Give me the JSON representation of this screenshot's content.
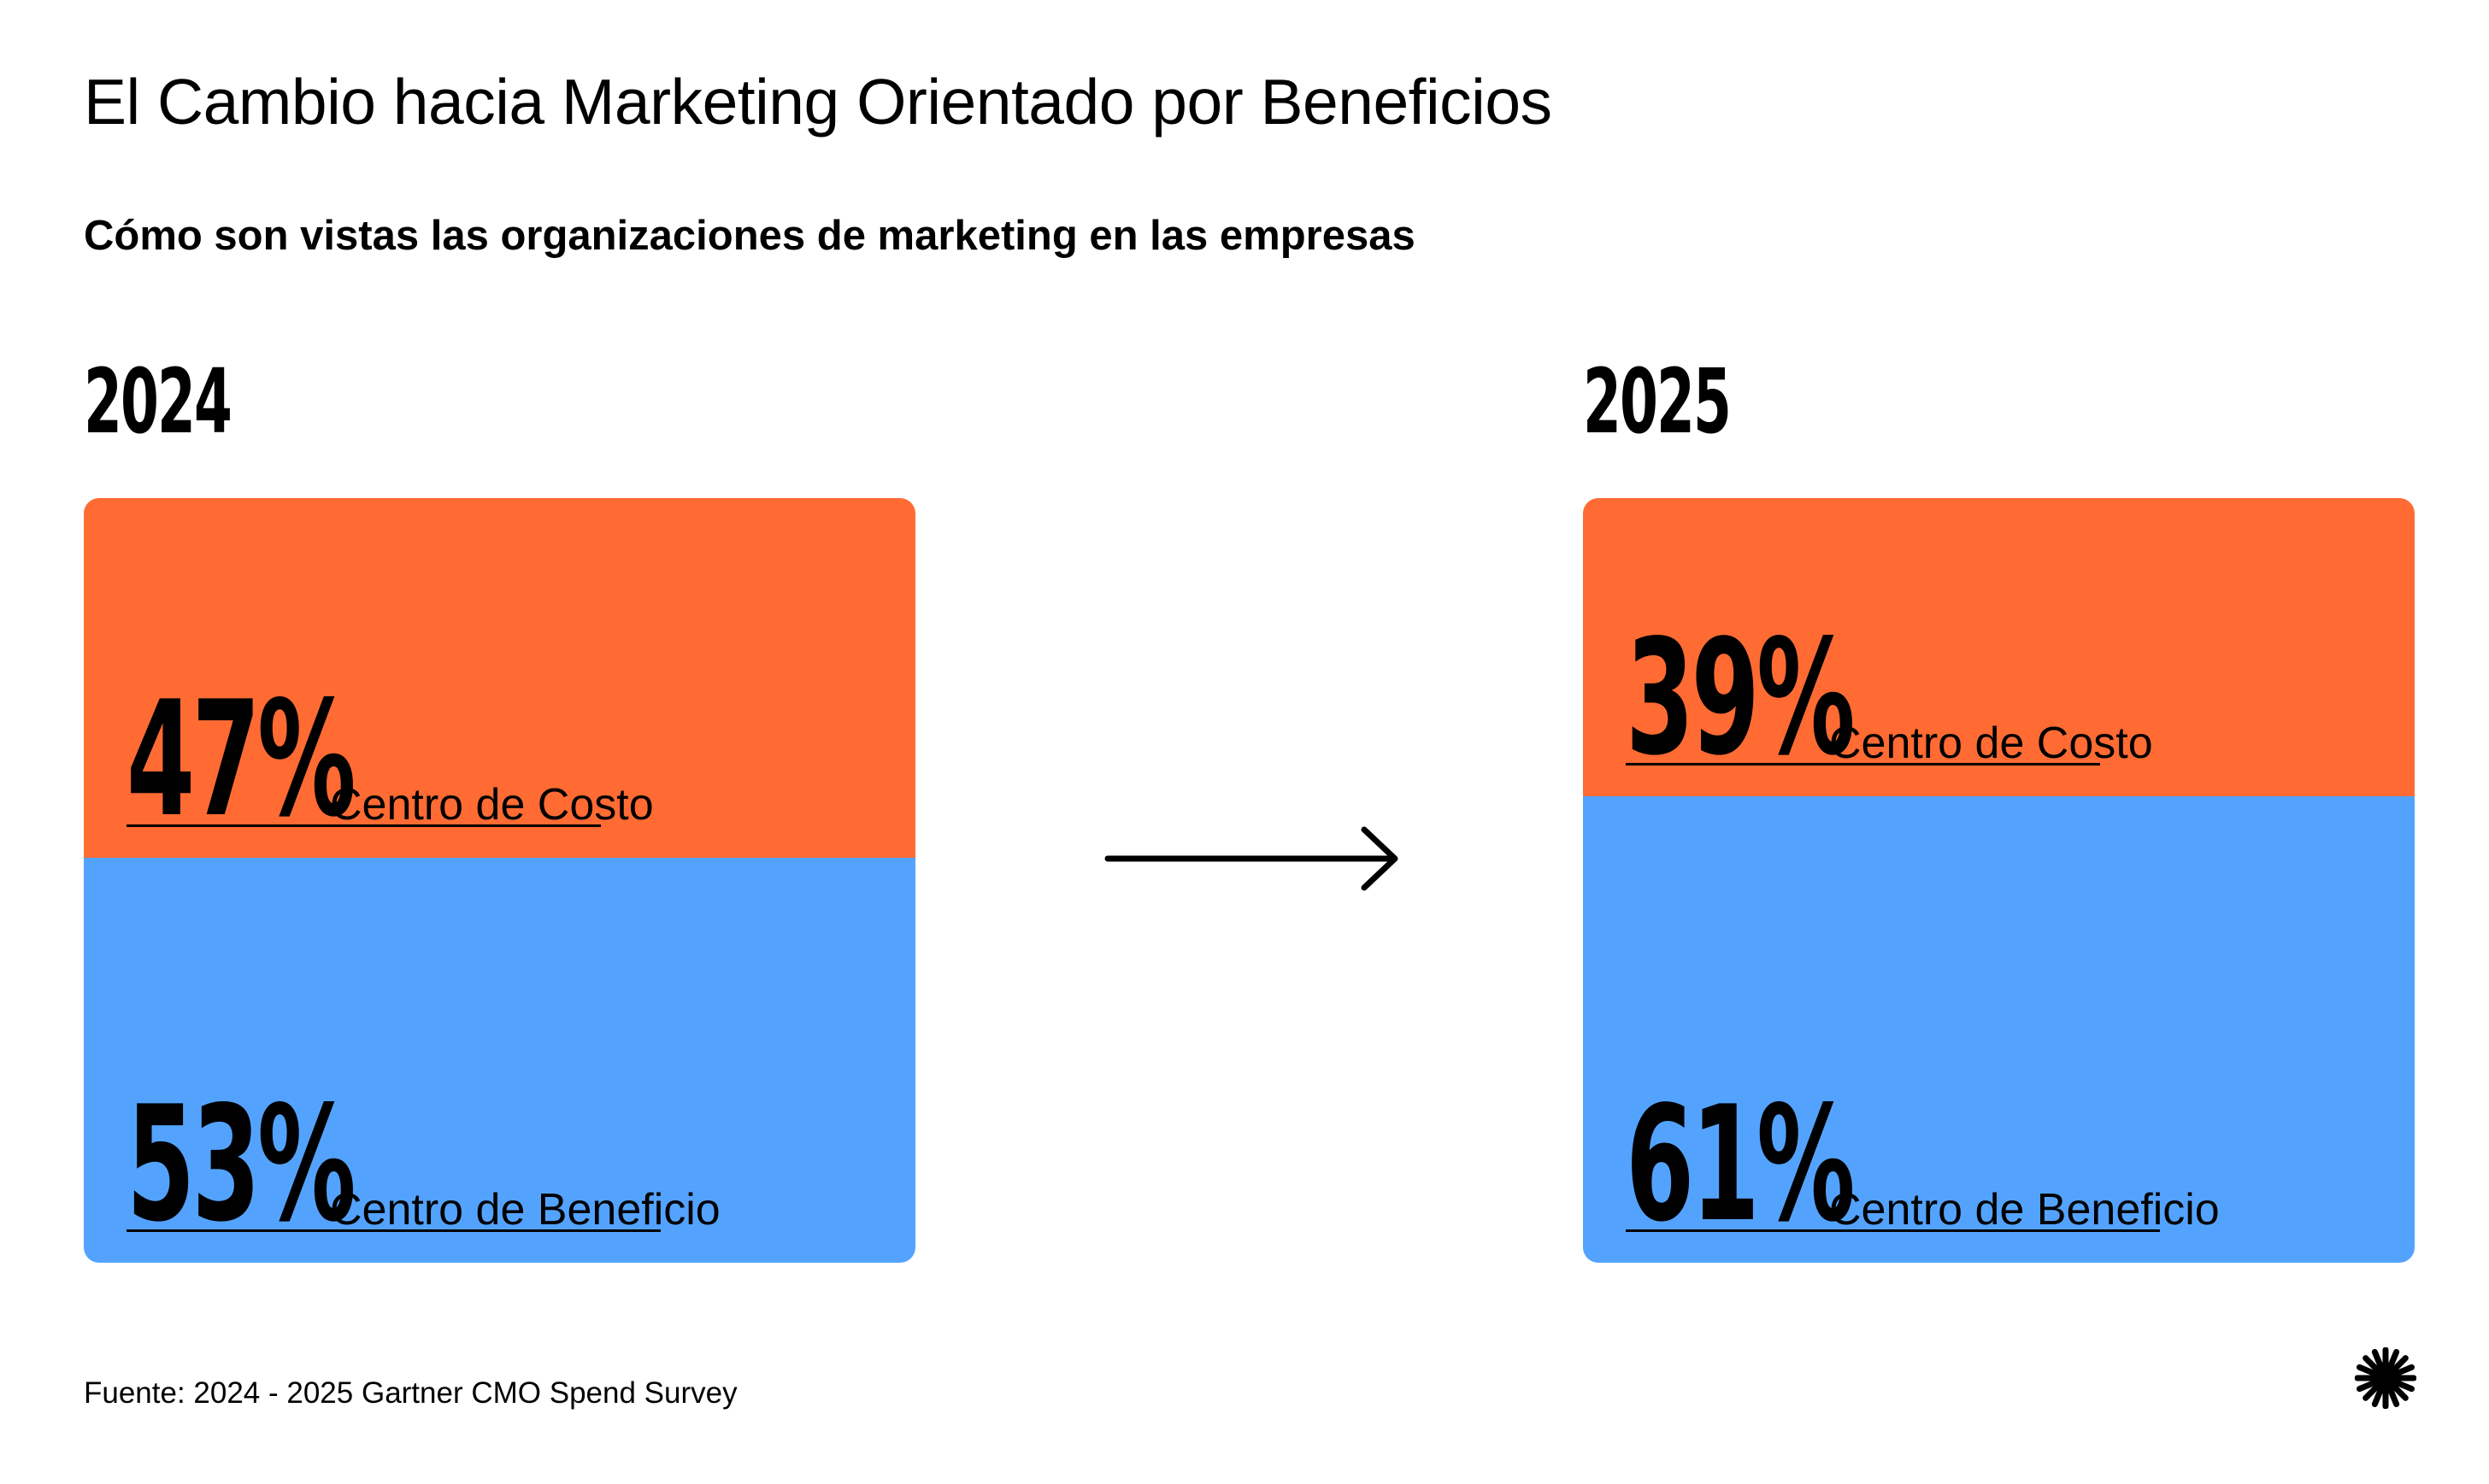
{
  "title": "El Cambio hacia Marketing Orientado por Beneficios",
  "subtitle": "Cómo son vistas las organizaciones de marketing en las empresas",
  "source": "Fuente: 2024 - 2025 Gartner CMO Spend Survey",
  "colors": {
    "cost": "#ff6b33",
    "benefit": "#53a3fe"
  },
  "icons": {
    "arrow": "arrow-right-icon",
    "logo": "starburst-logo-icon"
  },
  "chart_data": {
    "type": "bar",
    "stacked": true,
    "categories": [
      "2024",
      "2025"
    ],
    "series": [
      {
        "name": "Centro de Costo",
        "values": [
          47,
          39
        ],
        "labels": [
          "47%",
          "39%"
        ]
      },
      {
        "name": "Centro de Beneficio",
        "values": [
          53,
          61
        ],
        "labels": [
          "53%",
          "61%"
        ]
      }
    ]
  }
}
